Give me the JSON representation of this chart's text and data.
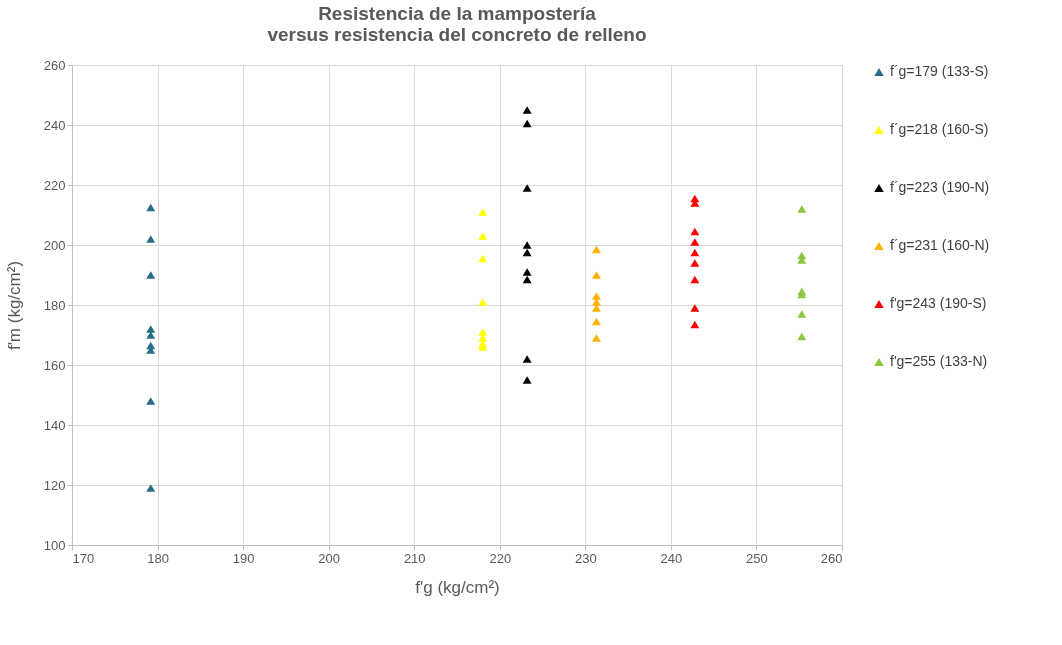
{
  "chart_data": {
    "type": "scatter",
    "title": "Resistencia de la mampostería\nversus resistencia del concreto de relleno",
    "xlabel": "f'g (kg/cm²)",
    "ylabel": "f'm (kg/cm²)",
    "xlim": [
      170,
      260
    ],
    "xticks": [
      170,
      180,
      190,
      200,
      210,
      220,
      230,
      240,
      250,
      260
    ],
    "ylim": [
      100,
      260
    ],
    "yticks": [
      100,
      120,
      140,
      160,
      180,
      200,
      220,
      240,
      260
    ],
    "grid": true,
    "legend": "right",
    "marker": "triangle",
    "series": [
      {
        "name": "f´g=179 (133-S)",
        "color": "#256f86",
        "x": [
          179.2,
          179.2,
          179.2,
          179.2,
          179.2,
          179.2,
          179.2,
          179.2,
          179.2
        ],
        "values": [
          212.5,
          202,
          190,
          172,
          170,
          166.5,
          165,
          148,
          119
        ]
      },
      {
        "name": "f´g=218 (160-S)",
        "color": "#ffff00",
        "x": [
          218,
          218,
          218,
          218,
          218,
          218,
          218,
          218
        ],
        "values": [
          211,
          203,
          195.5,
          181,
          171,
          169,
          167,
          166
        ]
      },
      {
        "name": "f´g=223 (190-N)",
        "color": "#000000",
        "x": [
          223.2,
          223.2,
          223.2,
          223.2,
          223.2,
          223.2,
          223.2,
          223.2,
          223.2
        ],
        "values": [
          245,
          240.5,
          219,
          200,
          197.5,
          191,
          188.5,
          162,
          155
        ]
      },
      {
        "name": "f´g=231 (160-N)",
        "color": "#ffb000",
        "x": [
          231.3,
          231.3,
          231.3,
          231.3,
          231.3,
          231.3,
          231.3
        ],
        "values": [
          198.5,
          190,
          183,
          181,
          179,
          174.5,
          169
        ]
      },
      {
        "name": "f'g=243 (190-S)",
        "color": "#ff0000",
        "x": [
          242.8,
          242.8,
          242.8,
          242.8,
          242.8,
          242.8,
          242.8,
          242.8,
          242.8
        ],
        "values": [
          215.5,
          214,
          204.5,
          201,
          197.5,
          194,
          188.5,
          179,
          173.5
        ]
      },
      {
        "name": "f'g=255 (133-N)",
        "color": "#8dc63f",
        "x": [
          255.3,
          255.3,
          255.3,
          255.3,
          255.3,
          255.3,
          255.3
        ],
        "values": [
          212,
          196.5,
          195,
          184.5,
          183.5,
          177,
          169.5
        ]
      }
    ]
  }
}
